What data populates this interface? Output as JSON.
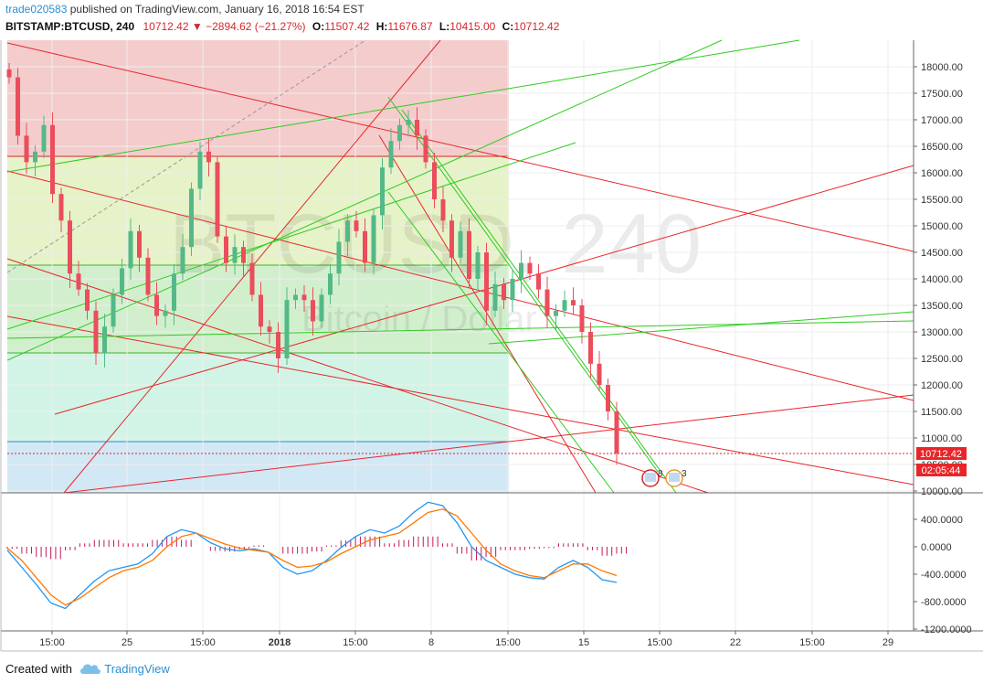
{
  "header": {
    "user": "trade020583",
    "published": " published on TradingView.com, January 16, 2018 16:54 EST",
    "symbol": "BITSTAMP:BTCUSD, 240",
    "last": "10712.42",
    "change": "▼ −2894.62 (−21.27%)",
    "o_label": "O:",
    "o": "11507.42",
    "h_label": "H:",
    "h": "11676.87",
    "l_label": "L:",
    "l": "10415.00",
    "c_label": "C:",
    "c": "10712.42"
  },
  "watermark": {
    "main": "BTCUSD, 240",
    "sub": "Bitcoin / Dollar"
  },
  "badges": {
    "price": "10712.42",
    "countdown": "02:05:44",
    "event1": "8",
    "event2": "3"
  },
  "footer": {
    "created": "Created with",
    "brand": "TradingView"
  },
  "colors": {
    "up": "#53b987",
    "down": "#eb4d5c",
    "red_line": "#e8262a",
    "green_line": "#2ecc1f",
    "macd": "#2196f3",
    "signal": "#ff7800",
    "hist": "#c2185b"
  },
  "chart_data": [
    {
      "type": "candlestick",
      "title": "BITSTAMP:BTCUSD, 240",
      "y_axis": {
        "ticks": [
          10000,
          10500,
          11000,
          11500,
          12000,
          12500,
          13000,
          13500,
          14000,
          14500,
          15000,
          15500,
          16000,
          16500,
          17000,
          17500,
          18000
        ],
        "tick_labels": [
          "10000.00",
          "10500.00",
          "11000.00",
          "11500.00",
          "12000.00",
          "12500.00",
          "13000.00",
          "13500.00",
          "14000.00",
          "14500.00",
          "15000.00",
          "15500.00",
          "16000.00",
          "16500.00",
          "17000.00",
          "17500.00",
          "18000.00"
        ],
        "ylim": [
          9980,
          18500
        ]
      },
      "x_axis": {
        "tick_labels": [
          "15:00",
          "25",
          "15:00",
          "2018",
          "15:00",
          "8",
          "15:00",
          "15",
          "15:00",
          "22",
          "15:00",
          "29"
        ]
      },
      "close_path": [
        17800,
        16700,
        16200,
        16400,
        16900,
        15600,
        15100,
        14100,
        13800,
        13400,
        12600,
        13100,
        13700,
        14200,
        14900,
        14400,
        13700,
        13300,
        13400,
        14100,
        14600,
        15700,
        16400,
        16200,
        14800,
        14300,
        14600,
        14300,
        13700,
        13100,
        13000,
        12500,
        13600,
        13700,
        13600,
        13200,
        13700,
        14100,
        14700,
        15100,
        14900,
        14300,
        15200,
        16100,
        16600,
        16900,
        17000,
        16700,
        16200,
        15500,
        15100,
        14400,
        14900,
        14000,
        14500,
        13400,
        13900,
        13600,
        14000,
        14300,
        14100,
        13800,
        13300,
        13400,
        13600,
        13500,
        13000,
        12400,
        12000,
        11500,
        10712
      ]
    },
    {
      "type": "line",
      "title": "MACD",
      "y_axis": {
        "ticks": [
          400,
          0,
          -400,
          -800,
          -1200
        ],
        "tick_labels": [
          "400.0000",
          "0.0000",
          "-400.0000",
          "-800.0000",
          "-1200.0000"
        ]
      },
      "series": [
        {
          "values": [
            -50,
            -300,
            -550,
            -820,
            -900,
            -700,
            -500,
            -350,
            -300,
            -250,
            -100,
            150,
            250,
            200,
            60,
            -30,
            -60,
            -30,
            -80,
            -300,
            -400,
            -350,
            -200,
            -10,
            150,
            250,
            200,
            300,
            500,
            650,
            600,
            350,
            0,
            -200,
            -300,
            -400,
            -450,
            -470,
            -300,
            -200,
            -300,
            -480,
            -520
          ]
        },
        {
          "values": [
            -20,
            -200,
            -450,
            -700,
            -850,
            -750,
            -600,
            -450,
            -350,
            -300,
            -200,
            0,
            150,
            200,
            120,
            40,
            -20,
            -50,
            -80,
            -200,
            -300,
            -280,
            -220,
            -100,
            0,
            100,
            150,
            200,
            350,
            500,
            550,
            450,
            200,
            -50,
            -250,
            -350,
            -420,
            -450,
            -350,
            -250,
            -250,
            -350,
            -420
          ]
        },
        {
          "values": [
            -30,
            -100,
            -150,
            -180,
            -50,
            50,
            100,
            100,
            50,
            50,
            100,
            150,
            100,
            0,
            -60,
            -70,
            -40,
            20,
            0,
            -100,
            -100,
            -70,
            20,
            90,
            150,
            150,
            50,
            100,
            150,
            150,
            50,
            -100,
            -200,
            -150,
            -50,
            -50,
            -30,
            -20,
            50,
            50,
            -50,
            -130,
            -100
          ]
        }
      ]
    }
  ]
}
